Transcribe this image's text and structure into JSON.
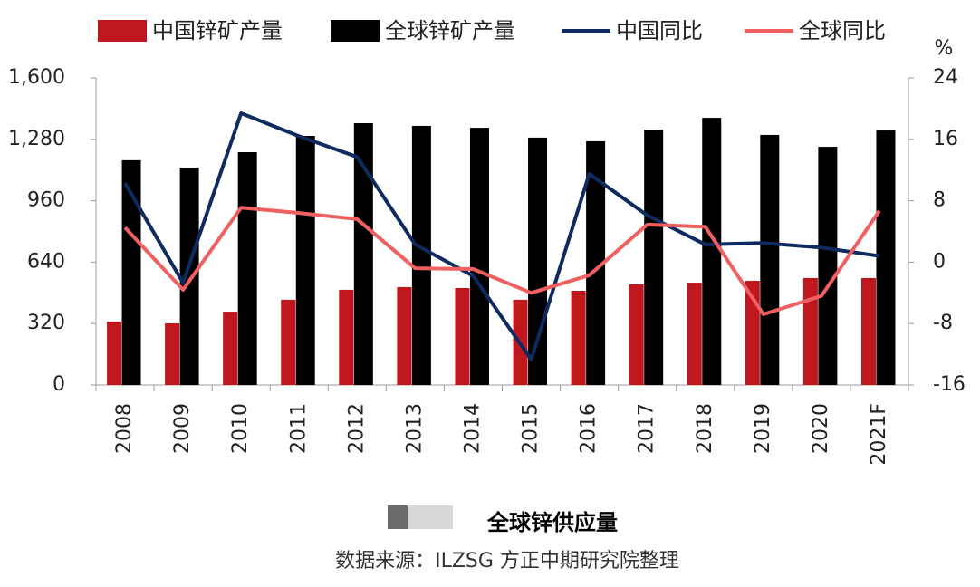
{
  "chart_data": {
    "type": "bar_line",
    "title": "全球锌供应量",
    "source": "数据来源：ILZSG  方正中期研究院整理",
    "y2_unit_label": "%",
    "categories": [
      "2008",
      "2009",
      "2010",
      "2011",
      "2012",
      "2013",
      "2014",
      "2015",
      "2016",
      "2017",
      "2018",
      "2019",
      "2020",
      "2021F"
    ],
    "series": [
      {
        "name": "中国锌矿产量",
        "type": "bar",
        "color": "#c0161e",
        "values": [
          330,
          321,
          382,
          444,
          496,
          510,
          505,
          444,
          491,
          524,
          533,
          543,
          557,
          557
        ]
      },
      {
        "name": "全球锌矿产量",
        "type": "bar",
        "color": "#000000",
        "values": [
          1171,
          1133,
          1213,
          1298,
          1364,
          1350,
          1340,
          1289,
          1270,
          1331,
          1392,
          1303,
          1241,
          1326
        ]
      },
      {
        "name": "中国同比",
        "type": "line",
        "axis": "y2",
        "color": "#0d2b5e",
        "values": [
          10.3,
          -2.7,
          19.4,
          16.4,
          13.7,
          2.3,
          -1.8,
          -12.7,
          11.5,
          6.1,
          2.3,
          2.5,
          1.9,
          0.8
        ]
      },
      {
        "name": "全球同比",
        "type": "line",
        "axis": "y2",
        "color": "#f06060",
        "values": [
          4.5,
          -3.6,
          7.1,
          6.4,
          5.6,
          -0.8,
          -0.9,
          -4.0,
          -1.7,
          4.9,
          4.6,
          -6.8,
          -4.4,
          6.7
        ]
      }
    ],
    "ylim": [
      0,
      1600
    ],
    "yticks": [
      0,
      320,
      640,
      960,
      {
        "value": 1280,
        "label": "1,280"
      },
      {
        "value": 1600,
        "label": "1,600"
      }
    ],
    "y2lim": [
      -16,
      24
    ],
    "y2ticks": [
      -16,
      -8,
      0,
      8,
      16,
      24
    ],
    "legend": "top"
  }
}
